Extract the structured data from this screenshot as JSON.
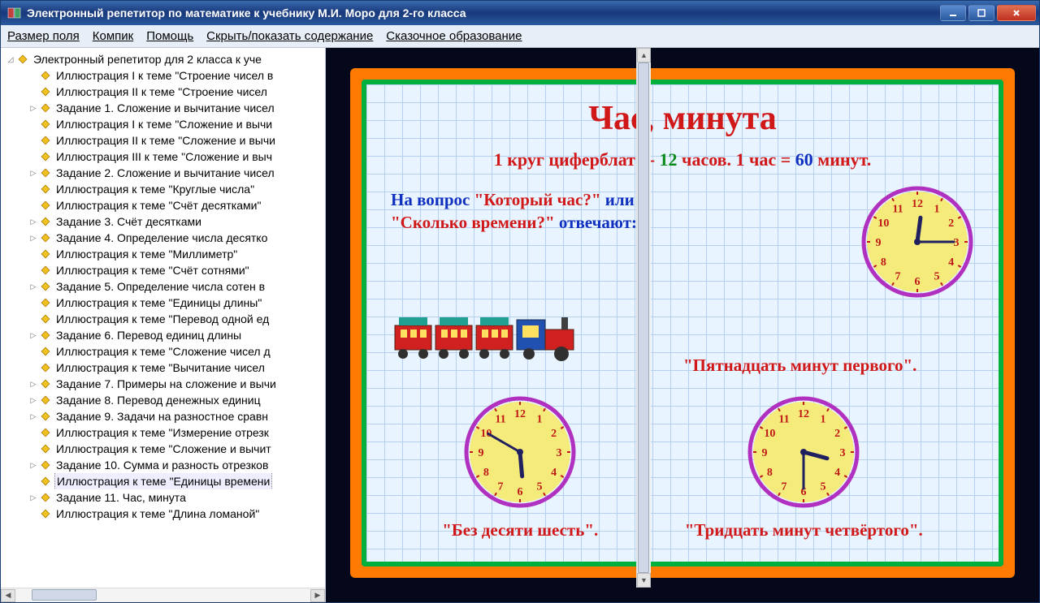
{
  "window": {
    "title": "Электронный репетитор по математике к учебнику М.И. Моро для 2-го класса"
  },
  "menu": {
    "items": [
      "Размер поля",
      "Компик",
      "Помощь",
      "Скрыть/показать содержание",
      "Сказочное образование"
    ]
  },
  "tree": {
    "root": "Электронный репетитор для 2 класса к уче",
    "items": [
      {
        "t": "Иллюстрация I к теме \"Строение чисел в",
        "exp": ""
      },
      {
        "t": "Иллюстрация II к теме \"Строение чисел",
        "exp": ""
      },
      {
        "t": "Задание 1. Сложение и вычитание чисел",
        "exp": "▷"
      },
      {
        "t": "Иллюстрация I к теме \"Сложение и вычи",
        "exp": ""
      },
      {
        "t": "Иллюстрация II к теме \"Сложение и вычи",
        "exp": ""
      },
      {
        "t": "Иллюстрация III к теме \"Сложение и выч",
        "exp": ""
      },
      {
        "t": "Задание 2. Сложение и вычитание чисел",
        "exp": "▷"
      },
      {
        "t": "Иллюстрация к теме \"Круглые числа\"",
        "exp": ""
      },
      {
        "t": "Иллюстрация к теме \"Счёт десятками\"",
        "exp": ""
      },
      {
        "t": "Задание 3. Счёт десятками",
        "exp": "▷"
      },
      {
        "t": "Задание 4. Определение числа десятко",
        "exp": "▷"
      },
      {
        "t": "Иллюстрация к теме \"Миллиметр\"",
        "exp": ""
      },
      {
        "t": "Иллюстрация к теме \"Счёт сотнями\"",
        "exp": ""
      },
      {
        "t": "Задание 5. Определение числа сотен в",
        "exp": "▷"
      },
      {
        "t": "Иллюстрация к теме \"Единицы длины\"",
        "exp": ""
      },
      {
        "t": "Иллюстрация к теме \"Перевод одной ед",
        "exp": ""
      },
      {
        "t": "Задание 6. Перевод единиц длины",
        "exp": "▷"
      },
      {
        "t": "Иллюстрация к теме \"Сложение чисел д",
        "exp": ""
      },
      {
        "t": "Иллюстрация к теме \"Вычитание чисел",
        "exp": ""
      },
      {
        "t": "Задание 7. Примеры на сложение и вычи",
        "exp": "▷"
      },
      {
        "t": "Задание 8. Перевод денежных единиц",
        "exp": "▷"
      },
      {
        "t": "Задание 9. Задачи на разностное сравн",
        "exp": "▷"
      },
      {
        "t": "Иллюстрация к теме \"Измерение отрезк",
        "exp": ""
      },
      {
        "t": "Иллюстрация к теме \"Сложение и вычит",
        "exp": ""
      },
      {
        "t": "Задание 10. Сумма и разность отрезков",
        "exp": "▷"
      },
      {
        "t": "Иллюстрация к теме \"Единицы времени",
        "exp": "",
        "sel": true
      },
      {
        "t": "Задание 11. Час, минута",
        "exp": "▷"
      },
      {
        "t": "Иллюстрация к теме \"Длина ломаной\"",
        "exp": ""
      }
    ]
  },
  "lesson": {
    "title": "Час, минута",
    "sub_p1": "1 круг циферблата - ",
    "sub_12": "12",
    "sub_p2": " часов.   ",
    "sub_p3": "1 час = ",
    "sub_60": "60",
    "sub_p4": " минут.",
    "q_line1a": "На вопрос ",
    "q_quote1": "\"Который час?\"",
    "q_line1b": " или",
    "q_quote2": "\"Сколько времени?\"",
    "q_line2b": " отвечают:",
    "ans1": "\"Пятнадцать минут первого\".",
    "ans2": "\"Без десяти шесть\".",
    "ans3": "\"Тридцать минут четвёртого\".",
    "clocks": [
      {
        "hour_angle": 7.5,
        "min_angle": 90
      },
      {
        "hour_angle": 175,
        "min_angle": 300
      },
      {
        "hour_angle": 105,
        "min_angle": 180
      }
    ],
    "clock_style": {
      "face": "#f5eb7a",
      "rim": "#b030c0",
      "tick": "#c01818",
      "hand": "#202060"
    }
  }
}
